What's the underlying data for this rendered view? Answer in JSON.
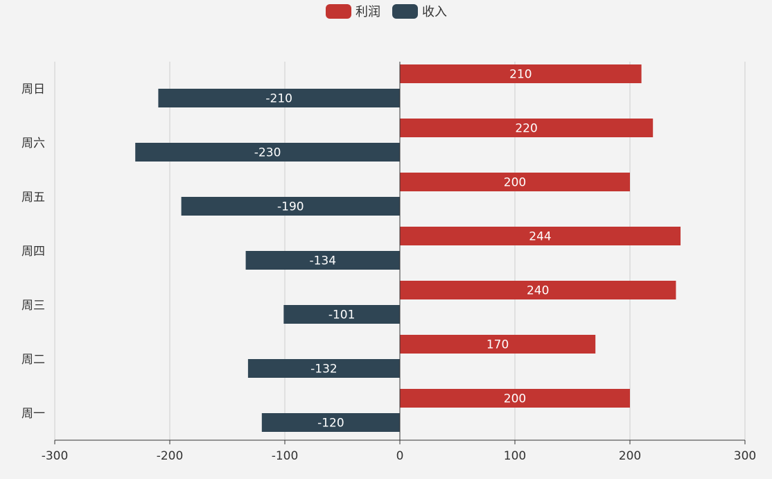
{
  "chart_data": {
    "type": "bar",
    "orientation": "horizontal",
    "title": "",
    "xlabel": "",
    "ylabel": "",
    "xlim": [
      -300,
      300
    ],
    "x_ticks": [
      -300,
      -200,
      -100,
      0,
      100,
      200,
      300
    ],
    "categories": [
      "周一",
      "周二",
      "周三",
      "周四",
      "周五",
      "周六",
      "周日"
    ],
    "series": [
      {
        "name": "利润",
        "color": "#c23531",
        "values": [
          200,
          170,
          240,
          244,
          200,
          220,
          210
        ]
      },
      {
        "name": "收入",
        "color": "#2f4554",
        "values": [
          -120,
          -132,
          -101,
          -134,
          -190,
          -230,
          -210
        ]
      }
    ],
    "grid": true,
    "data_labels": true,
    "legend_position": "top-center"
  }
}
